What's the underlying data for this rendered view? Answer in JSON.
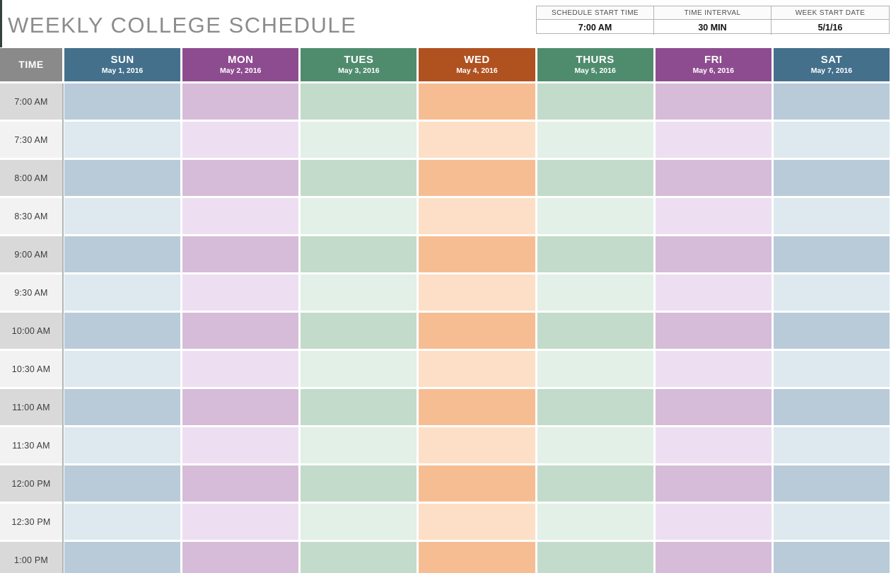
{
  "title": "WEEKLY COLLEGE SCHEDULE",
  "settings": {
    "columns": [
      {
        "label": "SCHEDULE START TIME",
        "value": "7:00 AM"
      },
      {
        "label": "TIME INTERVAL",
        "value": "30 MIN"
      },
      {
        "label": "WEEK START DATE",
        "value": "5/1/16"
      }
    ]
  },
  "schedule": {
    "time_header": "TIME",
    "time_column": {
      "header_color": "#8a8a8a",
      "row_dark": "#d9d9d9",
      "row_light": "#f2f2f2"
    },
    "days": [
      {
        "name": "SUN",
        "date": "May 1, 2016",
        "header_color": "#44708c",
        "cell_dark": "#b9cbd8",
        "cell_light": "#dde9ee"
      },
      {
        "name": "MON",
        "date": "May 2, 2016",
        "header_color": "#8e4c90",
        "cell_dark": "#d6bcd9",
        "cell_light": "#eddff1"
      },
      {
        "name": "TUES",
        "date": "May 3, 2016",
        "header_color": "#4f8c6e",
        "cell_dark": "#c2dbca",
        "cell_light": "#e2f0e7"
      },
      {
        "name": "WED",
        "date": "May 4, 2016",
        "header_color": "#b05120",
        "cell_dark": "#f7bd92",
        "cell_light": "#fcdfc6"
      },
      {
        "name": "THURS",
        "date": "May 5, 2016",
        "header_color": "#4f8c6e",
        "cell_dark": "#c2dbca",
        "cell_light": "#e2f0e7"
      },
      {
        "name": "FRI",
        "date": "May 6, 2016",
        "header_color": "#8e4c90",
        "cell_dark": "#d6bcd9",
        "cell_light": "#eddff1"
      },
      {
        "name": "SAT",
        "date": "May 7, 2016",
        "header_color": "#44708c",
        "cell_dark": "#b9cbd8",
        "cell_light": "#dde9ee"
      }
    ],
    "times": [
      "7:00 AM",
      "7:30 AM",
      "8:00 AM",
      "8:30 AM",
      "9:00 AM",
      "9:30 AM",
      "10:00 AM",
      "10:30 AM",
      "11:00 AM",
      "11:30 AM",
      "12:00 PM",
      "12:30 PM",
      "1:00 PM"
    ],
    "cells": []
  }
}
